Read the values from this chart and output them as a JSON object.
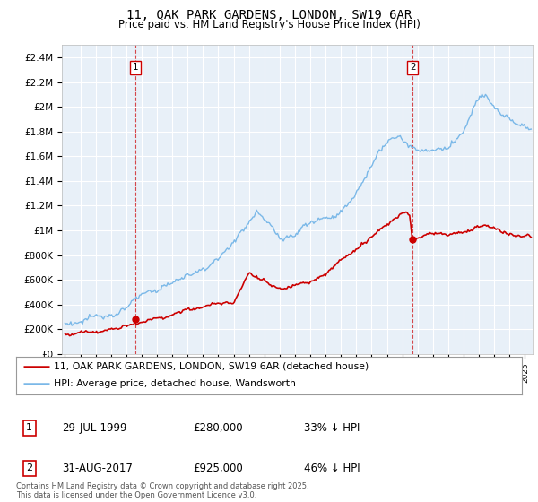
{
  "title": "11, OAK PARK GARDENS, LONDON, SW19 6AR",
  "subtitle": "Price paid vs. HM Land Registry's House Price Index (HPI)",
  "hpi_color": "#7ab8e8",
  "price_color": "#cc0000",
  "dashed_color": "#cc0000",
  "purchase1": {
    "date_num": 1999.58,
    "price": 280000,
    "label": "1",
    "date_str": "29-JUL-1999",
    "price_str": "£280,000",
    "pct": "33% ↓ HPI"
  },
  "purchase2": {
    "date_num": 2017.67,
    "price": 925000,
    "label": "2",
    "date_str": "31-AUG-2017",
    "price_str": "£925,000",
    "pct": "46% ↓ HPI"
  },
  "ylabel_ticks": [
    "£0",
    "£200K",
    "£400K",
    "£600K",
    "£800K",
    "£1M",
    "£1.2M",
    "£1.4M",
    "£1.6M",
    "£1.8M",
    "£2M",
    "£2.2M",
    "£2.4M"
  ],
  "ylabel_values": [
    0,
    200000,
    400000,
    600000,
    800000,
    1000000,
    1200000,
    1400000,
    1600000,
    1800000,
    2000000,
    2200000,
    2400000
  ],
  "xmin": 1994.8,
  "xmax": 2025.5,
  "ymin": 0,
  "ymax": 2500000,
  "legend_line1": "11, OAK PARK GARDENS, LONDON, SW19 6AR (detached house)",
  "legend_line2": "HPI: Average price, detached house, Wandsworth",
  "footnote": "Contains HM Land Registry data © Crown copyright and database right 2025.\nThis data is licensed under the Open Government Licence v3.0.",
  "background_color": "#ffffff",
  "chart_bg_color": "#e8f0f8",
  "grid_color": "#ffffff"
}
